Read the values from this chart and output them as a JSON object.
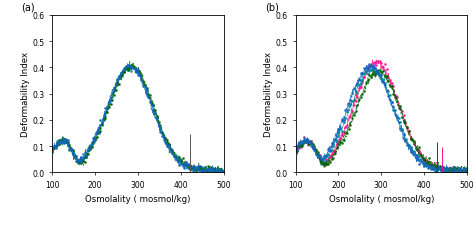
{
  "xlim": [
    100,
    500
  ],
  "ylim": [
    0,
    0.6
  ],
  "xticks": [
    100,
    200,
    300,
    400,
    500
  ],
  "yticks": [
    0,
    0.1,
    0.2,
    0.3,
    0.4,
    0.5,
    0.6
  ],
  "xlabel": "Osmolality ( mosmol/kg)",
  "ylabel": "Deformability Index",
  "label_a": "(a)",
  "label_b": "(b)",
  "colors_a": [
    "#008B8B",
    "#006400",
    "#1565C0"
  ],
  "colors_b": [
    "#FF1493",
    "#008B8B",
    "#006400",
    "#1565C0"
  ],
  "bg_color": "#ffffff"
}
